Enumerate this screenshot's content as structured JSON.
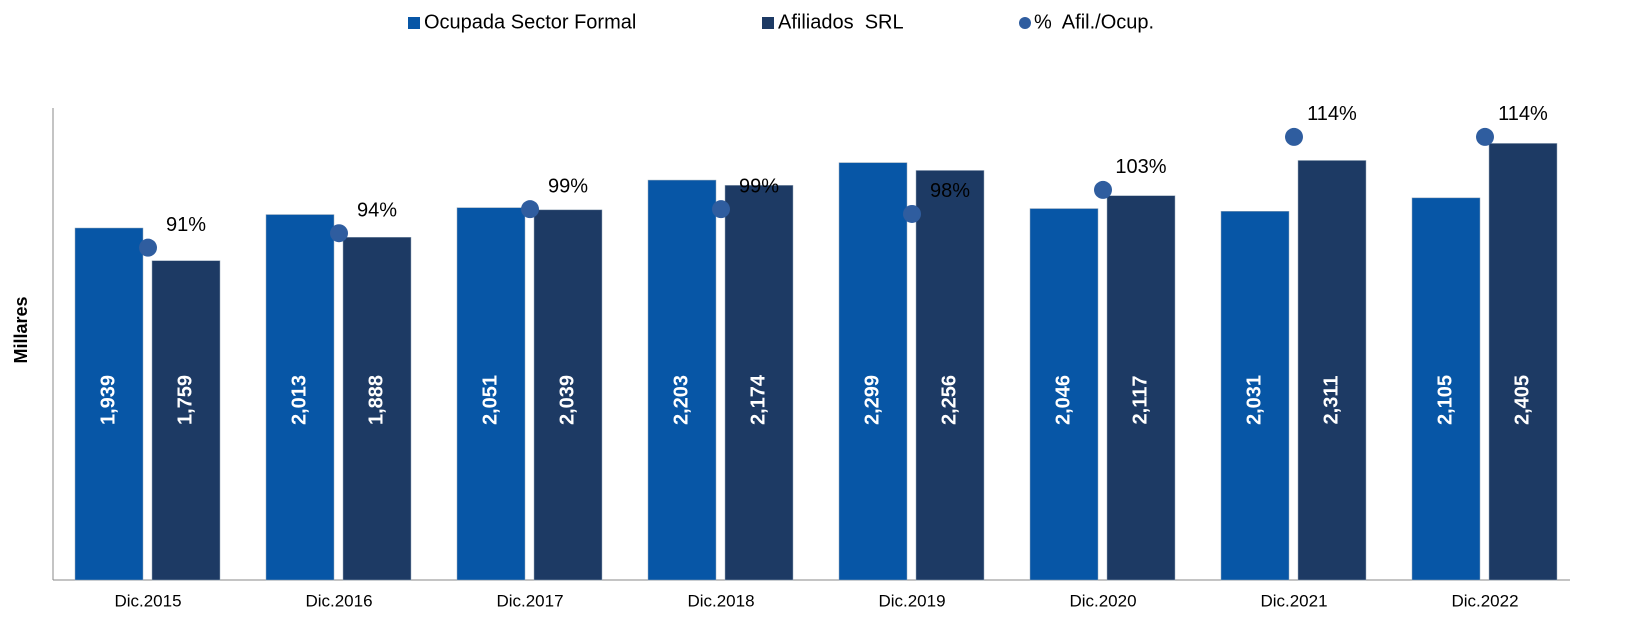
{
  "chart_data": {
    "type": "bar",
    "y_label": "Millares",
    "categories": [
      "Dic.2015",
      "Dic.2016",
      "Dic.2017",
      "Dic.2018",
      "Dic.2019",
      "Dic.2020",
      "Dic.2021",
      "Dic.2022"
    ],
    "series": [
      {
        "name": "Ocupada Sector Formal",
        "color": "#0756a6",
        "values": [
          1939,
          2013,
          2051,
          2203,
          2299,
          2046,
          2031,
          2105
        ],
        "value_labels": [
          "1,939",
          "2,013",
          "2,051",
          "2,203",
          "2,299",
          "2,046",
          "2,031",
          "2,105"
        ]
      },
      {
        "name": "Afiliados  SRL",
        "color": "#1d3a64",
        "values": [
          1759,
          1888,
          2039,
          2174,
          2256,
          2117,
          2311,
          2405
        ],
        "value_labels": [
          "1,759",
          "1,888",
          "2,039",
          "2,174",
          "2,256",
          "2,117",
          "2,311",
          "2,405"
        ]
      },
      {
        "name": "%  Afil./Ocup.",
        "color": "#2f5d9f",
        "type": "scatter",
        "axis": "y2",
        "values": [
          91,
          94,
          99,
          99,
          98,
          103,
          114,
          114
        ],
        "value_labels": [
          "91%",
          "94%",
          "99%",
          "99%",
          "98%",
          "103%",
          "114%",
          "114%"
        ]
      }
    ],
    "ylim": [
      0,
      2600
    ],
    "y2lim": [
      22,
      120
    ],
    "legend": "top"
  }
}
